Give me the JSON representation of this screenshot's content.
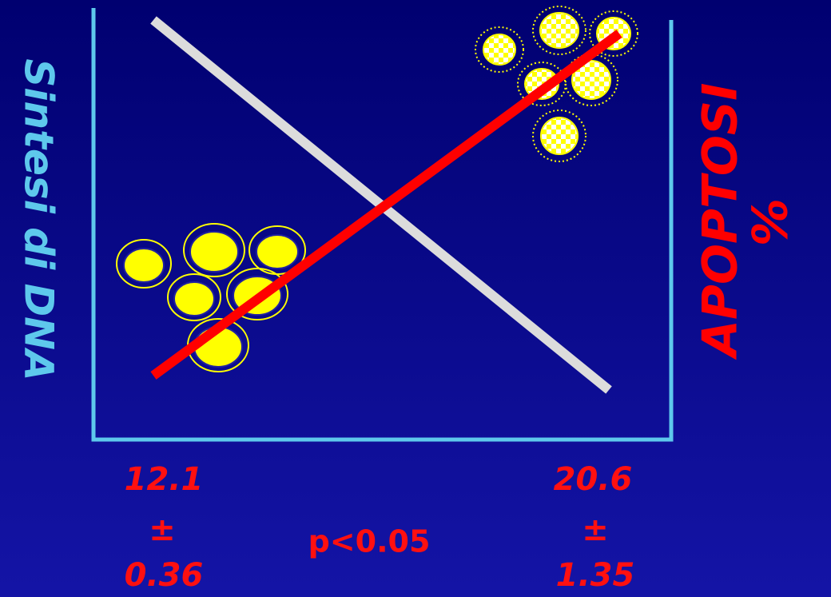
{
  "axes": {
    "left_label": "Sintesi di DNA",
    "right_label": [
      "APOPTOSI",
      "%"
    ]
  },
  "left_value": {
    "mean": "12.1",
    "sign": "±",
    "error": "0.36"
  },
  "right_value": {
    "mean": "20.6",
    "sign": "±",
    "error": "1.35"
  },
  "p_value": "p<0.05"
}
